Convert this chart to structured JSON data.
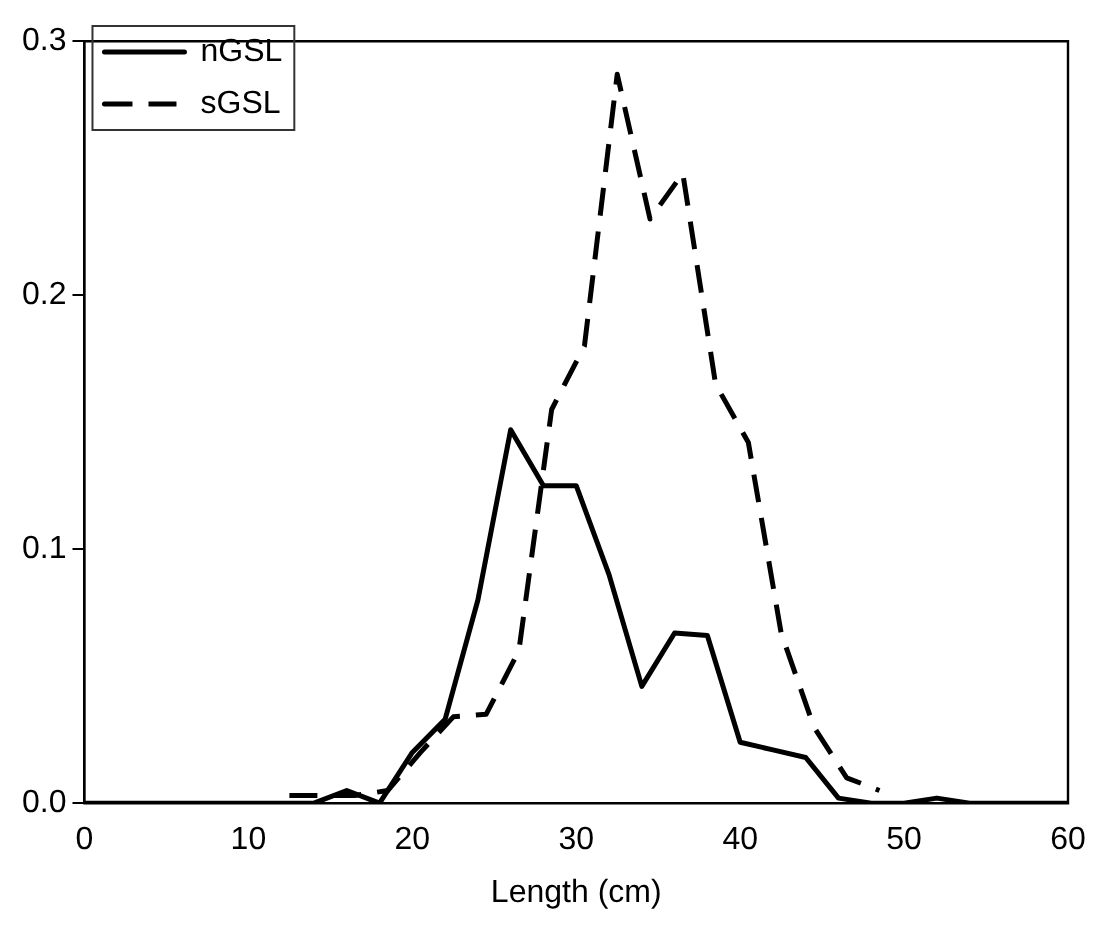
{
  "chart_data": {
    "type": "line",
    "xlabel": "Length (cm)",
    "xlim": [
      0,
      60
    ],
    "xticks": [
      0,
      10,
      20,
      30,
      40,
      50,
      60
    ],
    "ylim": [
      0,
      0.3
    ],
    "yticks": [
      {
        "value": 0,
        "label": "0.0"
      },
      0.1,
      0.2,
      0.3
    ],
    "grid": false,
    "legend": "top left",
    "marker": "none",
    "series": [
      {
        "name": "nGSL",
        "color": "#000000",
        "line_style": "solid",
        "x": [
          0,
          2,
          4,
          6,
          8,
          10,
          12,
          14,
          16,
          18,
          20,
          22,
          24,
          26,
          28,
          30,
          32,
          34,
          36,
          38,
          40,
          42,
          44,
          46,
          48,
          50,
          52,
          54,
          56,
          58,
          60
        ],
        "values": [
          0,
          0,
          0,
          0,
          0,
          0,
          0,
          0,
          0.005,
          0,
          0.02,
          0.033,
          0.08,
          0.147,
          0.125,
          0.125,
          0.09,
          0.046,
          0.067,
          0.066,
          0.024,
          0.021,
          0.018,
          0.002,
          0,
          0,
          0.002,
          0,
          0,
          0,
          0
        ]
      },
      {
        "name": "sGSL",
        "color": "#000000",
        "line_style": "dashed",
        "x": [
          12.5,
          14.5,
          16.5,
          18.5,
          20.5,
          22.5,
          24.5,
          26.5,
          28.5,
          30.5,
          32.5,
          34.5,
          36.5,
          38.5,
          40.5,
          42.5,
          44.5,
          46.5,
          48.5
        ],
        "values": [
          0.003,
          0.003,
          0.003,
          0.005,
          0.02,
          0.034,
          0.035,
          0.06,
          0.155,
          0.18,
          0.287,
          0.23,
          0.248,
          0.165,
          0.142,
          0.067,
          0.03,
          0.01,
          0.005
        ]
      }
    ]
  }
}
